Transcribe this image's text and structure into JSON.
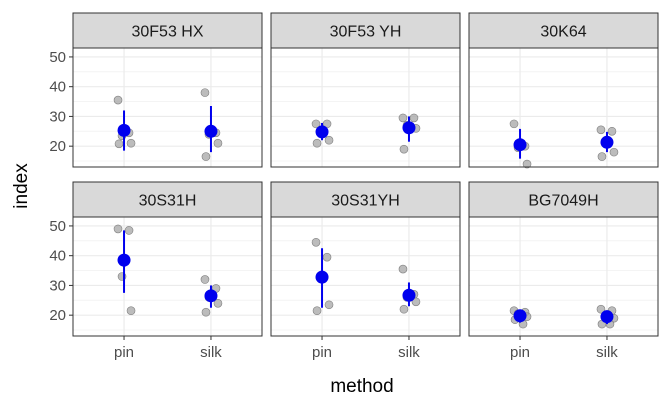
{
  "chart_data": {
    "type": "scatter",
    "xlabel": "method",
    "ylabel": "index",
    "categories": [
      "pin",
      "silk"
    ],
    "ylim": [
      13,
      53
    ],
    "yticks": [
      20,
      30,
      40,
      50
    ],
    "grid": true,
    "facets": [
      {
        "label": "30F53 HX",
        "points": {
          "pin": [
            35.5,
            24.5,
            23.5,
            21.0,
            20.8
          ],
          "silk": [
            38.0,
            24.5,
            24.0,
            21.0,
            16.5
          ]
        },
        "summary": {
          "pin": {
            "mean": 25.3,
            "low": 18.5,
            "high": 32.0
          },
          "silk": {
            "mean": 25.0,
            "low": 18.0,
            "high": 33.5
          }
        }
      },
      {
        "label": "30F53 YH",
        "points": {
          "pin": [
            27.5,
            27.5,
            25.0,
            22.0,
            21.0
          ],
          "silk": [
            29.5,
            29.5,
            27.0,
            26.0,
            19.0
          ]
        },
        "summary": {
          "pin": {
            "mean": 24.8,
            "low": 22.0,
            "high": 27.8
          },
          "silk": {
            "mean": 26.2,
            "low": 21.5,
            "high": 30.0
          }
        }
      },
      {
        "label": "30K64",
        "points": {
          "pin": [
            27.5,
            20.0,
            19.5,
            14.0
          ],
          "silk": [
            25.5,
            25.0,
            21.0,
            18.0,
            16.5
          ]
        },
        "summary": {
          "pin": {
            "mean": 20.5,
            "low": 15.8,
            "high": 25.8
          },
          "silk": {
            "mean": 21.3,
            "low": 18.0,
            "high": 24.8
          }
        }
      },
      {
        "label": "30S31H",
        "points": {
          "pin": [
            49.0,
            48.5,
            33.0,
            21.5
          ],
          "silk": [
            32.0,
            29.0,
            26.0,
            24.0,
            21.0
          ]
        },
        "summary": {
          "pin": {
            "mean": 38.5,
            "low": 27.5,
            "high": 48.5
          },
          "silk": {
            "mean": 26.5,
            "low": 22.5,
            "high": 30.0
          }
        }
      },
      {
        "label": "30S31YH",
        "points": {
          "pin": [
            44.5,
            39.5,
            32.5,
            23.5,
            21.5
          ],
          "silk": [
            35.5,
            27.0,
            26.0,
            24.5,
            22.0
          ]
        },
        "summary": {
          "pin": {
            "mean": 32.8,
            "low": 22.5,
            "high": 42.5
          },
          "silk": {
            "mean": 26.7,
            "low": 23.0,
            "high": 31.0
          }
        }
      },
      {
        "label": "BG7049H",
        "points": {
          "pin": [
            21.5,
            21.0,
            20.5,
            19.5,
            18.5,
            17.0
          ],
          "silk": [
            22.0,
            21.5,
            19.5,
            19.0,
            17.0,
            17.0
          ]
        },
        "summary": {
          "pin": {
            "mean": 19.8,
            "low": 17.5,
            "high": 21.5
          },
          "silk": {
            "mean": 19.5,
            "low": 17.0,
            "high": 21.5
          }
        }
      }
    ],
    "colors": {
      "points": "#a6a6a6",
      "summary": "#0000ee",
      "strip": "#d9d9d9",
      "grid": "#ebebeb",
      "frame": "#333333"
    }
  }
}
